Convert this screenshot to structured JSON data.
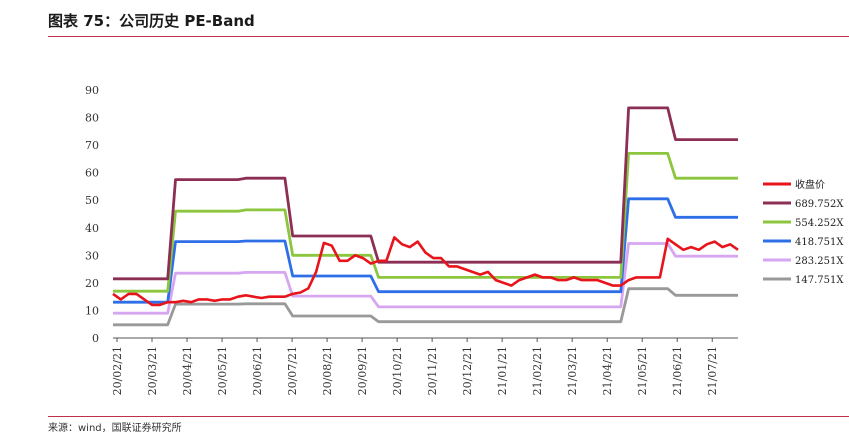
{
  "header": {
    "title": "图表 75：公司历史 PE-Band"
  },
  "footer": {
    "source": "来源：wind，国联证券研究所"
  },
  "chart_data": {
    "type": "line",
    "title": "",
    "xlabel": "",
    "ylabel": "",
    "ylim": [
      0,
      90
    ],
    "yticks": [
      0,
      10,
      20,
      30,
      40,
      50,
      60,
      70,
      80,
      90
    ],
    "x_tick_labels": [
      "20/02/21",
      "20/03/21",
      "20/04/21",
      "20/05/21",
      "20/06/21",
      "20/07/21",
      "20/08/21",
      "20/09/21",
      "20/10/21",
      "20/11/21",
      "20/12/21",
      "21/01/21",
      "21/02/21",
      "21/03/21",
      "21/04/21",
      "21/05/21",
      "21/06/21",
      "21/07/21"
    ],
    "grid": false,
    "legend_position": "right",
    "series": [
      {
        "name": "收盘价",
        "color": "#e8141b",
        "values": [
          16,
          14,
          16,
          16,
          14,
          12,
          12,
          13,
          13,
          13.5,
          13,
          14,
          14,
          13.5,
          14,
          14,
          15,
          15.5,
          15,
          14.5,
          15,
          15,
          15,
          16,
          16.5,
          18,
          24,
          34.5,
          33.5,
          28,
          28,
          30,
          29,
          27,
          28,
          28,
          36.5,
          34,
          33,
          35,
          31,
          29,
          29,
          26,
          26,
          25,
          24,
          23,
          24,
          21,
          20,
          19,
          21,
          22,
          23,
          22,
          22,
          21,
          21,
          22,
          21,
          21,
          21,
          20,
          19,
          19,
          21,
          22,
          22,
          22,
          22,
          36,
          34,
          32,
          33,
          32,
          34,
          35,
          33,
          34,
          32
        ]
      },
      {
        "name": "689.752X",
        "color": "#8c2f55",
        "values": [
          21.5,
          21.5,
          21.5,
          21.5,
          21.5,
          21.5,
          21.5,
          21.5,
          57.5,
          57.5,
          57.5,
          57.5,
          57.5,
          57.5,
          57.5,
          57.5,
          57.5,
          58,
          58,
          58,
          58,
          58,
          58,
          37,
          37,
          37,
          37,
          37,
          37,
          37,
          37,
          37,
          37,
          37,
          27.5,
          27.5,
          27.5,
          27.5,
          27.5,
          27.5,
          27.5,
          27.5,
          27.5,
          27.5,
          27.5,
          27.5,
          27.5,
          27.5,
          27.5,
          27.5,
          27.5,
          27.5,
          27.5,
          27.5,
          27.5,
          27.5,
          27.5,
          27.5,
          27.5,
          27.5,
          27.5,
          27.5,
          27.5,
          27.5,
          27.5,
          27.5,
          83.5,
          83.5,
          83.5,
          83.5,
          83.5,
          83.5,
          72,
          72,
          72,
          72,
          72,
          72,
          72,
          72,
          72
        ]
      },
      {
        "name": "554.252X",
        "color": "#8cc63f",
        "values": [
          17,
          17,
          17,
          17,
          17,
          17,
          17,
          17,
          46,
          46,
          46,
          46,
          46,
          46,
          46,
          46,
          46,
          46.5,
          46.5,
          46.5,
          46.5,
          46.5,
          46.5,
          30,
          30,
          30,
          30,
          30,
          30,
          30,
          30,
          30,
          30,
          30,
          22,
          22,
          22,
          22,
          22,
          22,
          22,
          22,
          22,
          22,
          22,
          22,
          22,
          22,
          22,
          22,
          22,
          22,
          22,
          22,
          22,
          22,
          22,
          22,
          22,
          22,
          22,
          22,
          22,
          22,
          22,
          22,
          67,
          67,
          67,
          67,
          67,
          67,
          58,
          58,
          58,
          58,
          58,
          58,
          58,
          58,
          58
        ]
      },
      {
        "name": "418.751X",
        "color": "#2e6fe8",
        "values": [
          13,
          13,
          13,
          13,
          13,
          13,
          13,
          13,
          35,
          35,
          35,
          35,
          35,
          35,
          35,
          35,
          35,
          35.2,
          35.2,
          35.2,
          35.2,
          35.2,
          35.2,
          22.5,
          22.5,
          22.5,
          22.5,
          22.5,
          22.5,
          22.5,
          22.5,
          22.5,
          22.5,
          22.5,
          16.8,
          16.8,
          16.8,
          16.8,
          16.8,
          16.8,
          16.8,
          16.8,
          16.8,
          16.8,
          16.8,
          16.8,
          16.8,
          16.8,
          16.8,
          16.8,
          16.8,
          16.8,
          16.8,
          16.8,
          16.8,
          16.8,
          16.8,
          16.8,
          16.8,
          16.8,
          16.8,
          16.8,
          16.8,
          16.8,
          16.8,
          16.8,
          50.5,
          50.5,
          50.5,
          50.5,
          50.5,
          50.5,
          43.8,
          43.8,
          43.8,
          43.8,
          43.8,
          43.8,
          43.8,
          43.8,
          43.8
        ]
      },
      {
        "name": "283.251X",
        "color": "#d7a6f0",
        "values": [
          9,
          9,
          9,
          9,
          9,
          9,
          9,
          9,
          23.5,
          23.5,
          23.5,
          23.5,
          23.5,
          23.5,
          23.5,
          23.5,
          23.5,
          23.8,
          23.8,
          23.8,
          23.8,
          23.8,
          23.8,
          15.2,
          15.2,
          15.2,
          15.2,
          15.2,
          15.2,
          15.2,
          15.2,
          15.2,
          15.2,
          15.2,
          11.3,
          11.3,
          11.3,
          11.3,
          11.3,
          11.3,
          11.3,
          11.3,
          11.3,
          11.3,
          11.3,
          11.3,
          11.3,
          11.3,
          11.3,
          11.3,
          11.3,
          11.3,
          11.3,
          11.3,
          11.3,
          11.3,
          11.3,
          11.3,
          11.3,
          11.3,
          11.3,
          11.3,
          11.3,
          11.3,
          11.3,
          11.3,
          34.3,
          34.3,
          34.3,
          34.3,
          34.3,
          34.3,
          29.7,
          29.7,
          29.7,
          29.7,
          29.7,
          29.7,
          29.7,
          29.7,
          29.7
        ]
      },
      {
        "name": "147.751X",
        "color": "#999999",
        "values": [
          4.8,
          4.8,
          4.8,
          4.8,
          4.8,
          4.8,
          4.8,
          4.8,
          12.3,
          12.3,
          12.3,
          12.3,
          12.3,
          12.3,
          12.3,
          12.3,
          12.3,
          12.4,
          12.4,
          12.4,
          12.4,
          12.4,
          12.4,
          8,
          8,
          8,
          8,
          8,
          8,
          8,
          8,
          8,
          8,
          8,
          5.9,
          5.9,
          5.9,
          5.9,
          5.9,
          5.9,
          5.9,
          5.9,
          5.9,
          5.9,
          5.9,
          5.9,
          5.9,
          5.9,
          5.9,
          5.9,
          5.9,
          5.9,
          5.9,
          5.9,
          5.9,
          5.9,
          5.9,
          5.9,
          5.9,
          5.9,
          5.9,
          5.9,
          5.9,
          5.9,
          5.9,
          5.9,
          17.9,
          17.9,
          17.9,
          17.9,
          17.9,
          17.9,
          15.5,
          15.5,
          15.5,
          15.5,
          15.5,
          15.5,
          15.5,
          15.5,
          15.5
        ]
      }
    ]
  }
}
